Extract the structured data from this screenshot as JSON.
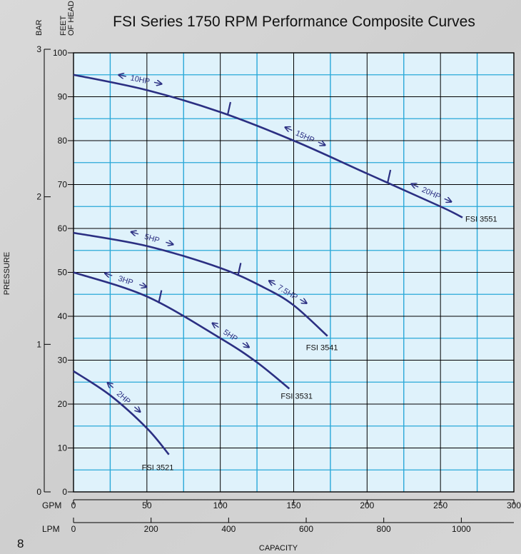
{
  "page_number": "8",
  "chart_data": {
    "type": "line",
    "title": "FSI Series 1750 RPM Performance Composite Curves",
    "feet_axis_label_line1": "FEET",
    "feet_axis_label_line2": "OF HEAD",
    "bar_axis_label": "BAR",
    "pressure_label": "PRESSURE",
    "capacity_label": "CAPACITY",
    "gpm_label": "GPM",
    "lpm_label": "LPM",
    "x_unit": "GPM",
    "y_unit": "feet of head",
    "xlim": [
      0,
      300
    ],
    "ylim": [
      0,
      100
    ],
    "x_ticks": [
      "0",
      "50",
      "100",
      "150",
      "200",
      "250",
      "300"
    ],
    "y_ticks": [
      "0",
      "10",
      "20",
      "30",
      "40",
      "50",
      "60",
      "70",
      "80",
      "90",
      "100"
    ],
    "bar_ticks": [
      {
        "label": "0",
        "value": 0
      },
      {
        "label": "1",
        "value": 1
      },
      {
        "label": "2",
        "value": 2
      },
      {
        "label": "3",
        "value": 3
      }
    ],
    "lpm_ticks": [
      {
        "label": "0",
        "value": 0
      },
      {
        "label": "200",
        "value": 200
      },
      {
        "label": "400",
        "value": 400
      },
      {
        "label": "600",
        "value": 600
      },
      {
        "label": "800",
        "value": 800
      },
      {
        "label": "1000",
        "value": 1000
      }
    ],
    "grid": true,
    "colors": {
      "background": "#dff2fb",
      "major_grid": "#000000",
      "minor_grid": "#29a8d8",
      "curve": "#2b2f82"
    },
    "series": [
      {
        "name": "FSI 3551",
        "points": [
          [
            0,
            95
          ],
          [
            50,
            91.5
          ],
          [
            100,
            86.5
          ],
          [
            150,
            80
          ],
          [
            200,
            72.5
          ],
          [
            250,
            65
          ],
          [
            265,
            62.5
          ]
        ],
        "hp_labels": [
          {
            "text": "10HP",
            "x": 45
          },
          {
            "text": "15HP",
            "x": 157
          },
          {
            "text": "20HP",
            "x": 243
          }
        ],
        "break_marks": [
          105,
          214
        ]
      },
      {
        "name": "FSI 3541",
        "points": [
          [
            0,
            59
          ],
          [
            50,
            56
          ],
          [
            100,
            51
          ],
          [
            130,
            46.5
          ],
          [
            150,
            42.5
          ],
          [
            173,
            35.5
          ]
        ],
        "hp_labels": [
          {
            "text": "5HP",
            "x": 53
          },
          {
            "text": "7.5HP",
            "x": 145
          }
        ],
        "break_marks": [
          112
        ]
      },
      {
        "name": "FSI 3531",
        "points": [
          [
            0,
            50
          ],
          [
            50,
            44.5
          ],
          [
            100,
            35
          ],
          [
            125,
            29.5
          ],
          [
            147,
            23.5
          ]
        ],
        "hp_labels": [
          {
            "text": "3HP",
            "x": 35
          },
          {
            "text": "5HP",
            "x": 106
          }
        ],
        "break_marks": [
          58
        ]
      },
      {
        "name": "FSI 3521",
        "points": [
          [
            0,
            27.5
          ],
          [
            25,
            22
          ],
          [
            50,
            14.5
          ],
          [
            65,
            8.5
          ]
        ],
        "hp_labels": [
          {
            "text": "2HP",
            "x": 33
          }
        ],
        "break_marks": []
      }
    ]
  }
}
